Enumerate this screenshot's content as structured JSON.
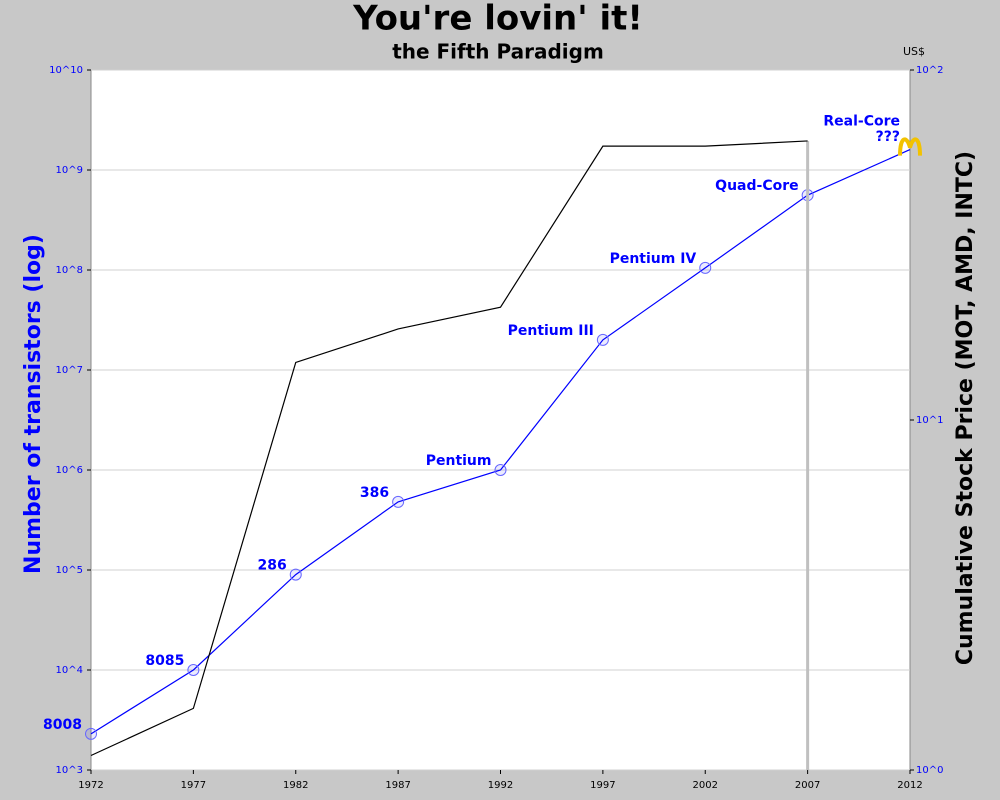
{
  "chart_data": {
    "type": "line",
    "title": "You're lovin' it!",
    "subtitle": "the Fifth Paradigm",
    "y_label": "Number of transistors (log)",
    "y2_label": "Cumulative Stock Price (MOT, AMD, INTC)",
    "y2_unit": "US$",
    "x": [
      1972,
      1977,
      1982,
      1987,
      1992,
      1997,
      2002,
      2007,
      2012
    ],
    "xlim": [
      1972,
      2012
    ],
    "xticks": [
      1972,
      1977,
      1982,
      1987,
      1992,
      1997,
      2002,
      2007,
      2012
    ],
    "log_y": true,
    "log_y2": true,
    "grid": true,
    "ylim": [
      1000,
      10000000000
    ],
    "yticks": [
      {
        "value": 1000,
        "label": "10^3"
      },
      {
        "value": 10000,
        "label": "10^4"
      },
      {
        "value": 100000,
        "label": "10^5"
      },
      {
        "value": 1000000,
        "label": "10^6"
      },
      {
        "value": 10000000,
        "label": "10^7"
      },
      {
        "value": 100000000,
        "label": "10^8"
      },
      {
        "value": 1000000000,
        "label": "10^9"
      },
      {
        "value": 10000000000,
        "label": "10^10"
      }
    ],
    "y2lim": [
      1,
      100
    ],
    "y2ticks": [
      {
        "value": 1,
        "label": "10^0"
      },
      {
        "value": 10,
        "label": "10^1"
      },
      {
        "value": 100,
        "label": "10^2"
      }
    ],
    "series": [
      {
        "color": "#0000ff",
        "marker": true,
        "values": [
          2300,
          10000,
          90000,
          480000,
          1000000,
          20000000,
          105000000,
          560000000,
          1600000000
        ],
        "point_labels": [
          "8008",
          "8085",
          "286",
          "386",
          "Pentium",
          "Pentium III",
          "Pentium IV",
          "Quad-Core",
          "Real-Core\n???"
        ]
      },
      {
        "color": "#000000",
        "axis": "y2",
        "marker": false,
        "values": [
          1.1,
          1.5,
          14.6,
          18.2,
          21,
          60.6,
          60.6,
          62.7,
          null
        ]
      }
    ]
  }
}
